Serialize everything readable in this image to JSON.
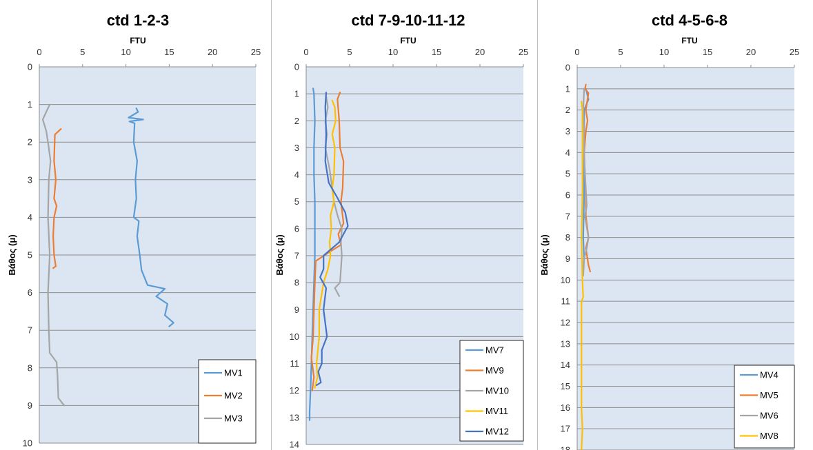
{
  "chart_data": [
    {
      "type": "line",
      "title": "ctd 1-2-3",
      "xlabel": "FTU",
      "ylabel": "Βάθος (μ)",
      "xlim": [
        0,
        25
      ],
      "ylim": [
        0,
        10
      ],
      "y_inverted": true,
      "x_axis_position": "top",
      "xticks": [
        "0",
        "5",
        "10",
        "15",
        "20",
        "25"
      ],
      "yticks": [
        "0",
        "1",
        "2",
        "3",
        "4",
        "5",
        "6",
        "7",
        "8",
        "9",
        "10"
      ],
      "grid": "horizontal",
      "legend": "bottom-right",
      "series": [
        {
          "name": "MV1",
          "color": "#5b9bd5",
          "points": [
            [
              11.2,
              1.1
            ],
            [
              11.4,
              1.2
            ],
            [
              10.3,
              1.35
            ],
            [
              12.0,
              1.4
            ],
            [
              10.4,
              1.45
            ],
            [
              11.0,
              1.5
            ],
            [
              10.9,
              2.0
            ],
            [
              11.3,
              2.5
            ],
            [
              11.1,
              3.0
            ],
            [
              11.2,
              3.5
            ],
            [
              10.9,
              4.0
            ],
            [
              11.5,
              4.1
            ],
            [
              11.3,
              4.5
            ],
            [
              11.6,
              5.0
            ],
            [
              11.8,
              5.4
            ],
            [
              12.5,
              5.8
            ],
            [
              14.5,
              5.9
            ],
            [
              13.5,
              6.1
            ],
            [
              14.8,
              6.3
            ],
            [
              14.5,
              6.6
            ],
            [
              15.5,
              6.8
            ],
            [
              15.0,
              6.9
            ]
          ]
        },
        {
          "name": "MV2",
          "color": "#ed7d31",
          "points": [
            [
              2.5,
              1.65
            ],
            [
              1.8,
              1.8
            ],
            [
              1.7,
              2.5
            ],
            [
              1.9,
              3.0
            ],
            [
              1.7,
              3.5
            ],
            [
              2.0,
              3.7
            ],
            [
              1.7,
              4.0
            ],
            [
              1.6,
              4.5
            ],
            [
              1.7,
              5.0
            ],
            [
              1.9,
              5.3
            ],
            [
              1.6,
              5.35
            ]
          ]
        },
        {
          "name": "MV3",
          "color": "#a5a5a5",
          "points": [
            [
              1.2,
              1.0
            ],
            [
              0.8,
              1.2
            ],
            [
              0.4,
              1.4
            ],
            [
              0.8,
              1.7
            ],
            [
              1.0,
              2.0
            ],
            [
              1.3,
              2.5
            ],
            [
              1.1,
              3.0
            ],
            [
              1.0,
              4.0
            ],
            [
              1.2,
              5.0
            ],
            [
              1.0,
              6.0
            ],
            [
              1.1,
              7.0
            ],
            [
              1.2,
              7.6
            ],
            [
              2.0,
              7.85
            ],
            [
              2.1,
              8.2
            ],
            [
              2.2,
              8.8
            ],
            [
              2.7,
              8.95
            ],
            [
              2.9,
              9.0
            ]
          ]
        }
      ]
    },
    {
      "type": "line",
      "title": "ctd 7-9-10-11-12",
      "xlabel": "FTU",
      "ylabel": "Βάθος (μ)",
      "xlim": [
        0,
        25
      ],
      "ylim": [
        0,
        14
      ],
      "y_inverted": true,
      "x_axis_position": "top",
      "xticks": [
        "0",
        "5",
        "10",
        "15",
        "20",
        "25"
      ],
      "yticks": [
        "0",
        "1",
        "2",
        "3",
        "4",
        "5",
        "6",
        "7",
        "8",
        "9",
        "10",
        "11",
        "12",
        "13",
        "14"
      ],
      "grid": "horizontal",
      "legend": "bottom-right",
      "series": [
        {
          "name": "MV7",
          "color": "#5b9bd5",
          "points": [
            [
              0.8,
              0.8
            ],
            [
              0.9,
              1.0
            ],
            [
              1.0,
              2.0
            ],
            [
              0.9,
              3.0
            ],
            [
              0.9,
              4.0
            ],
            [
              1.0,
              5.0
            ],
            [
              1.0,
              6.0
            ],
            [
              1.0,
              7.0
            ],
            [
              0.9,
              8.0
            ],
            [
              0.8,
              9.0
            ],
            [
              0.7,
              10.0
            ],
            [
              0.6,
              11.0
            ],
            [
              0.5,
              12.0
            ],
            [
              0.4,
              12.8
            ],
            [
              0.4,
              13.1
            ]
          ]
        },
        {
          "name": "MV9",
          "color": "#ed7d31",
          "points": [
            [
              3.9,
              0.95
            ],
            [
              3.6,
              1.2
            ],
            [
              3.8,
              2.0
            ],
            [
              3.9,
              3.0
            ],
            [
              4.3,
              3.5
            ],
            [
              4.2,
              4.5
            ],
            [
              4.0,
              5.0
            ],
            [
              4.3,
              5.8
            ],
            [
              3.7,
              6.2
            ],
            [
              4.0,
              6.6
            ],
            [
              2.5,
              6.9
            ],
            [
              1.1,
              7.2
            ],
            [
              1.0,
              8.0
            ],
            [
              0.9,
              9.0
            ],
            [
              0.8,
              10.0
            ],
            [
              0.6,
              10.8
            ],
            [
              0.9,
              11.5
            ],
            [
              0.7,
              12.0
            ]
          ]
        },
        {
          "name": "MV10",
          "color": "#a5a5a5",
          "points": [
            [
              2.3,
              1.1
            ],
            [
              2.5,
              1.5
            ],
            [
              2.2,
              2.0
            ],
            [
              2.4,
              2.5
            ],
            [
              2.2,
              3.0
            ],
            [
              2.7,
              3.8
            ],
            [
              3.0,
              4.5
            ],
            [
              3.2,
              5.0
            ],
            [
              3.6,
              5.5
            ],
            [
              4.1,
              6.0
            ],
            [
              4.0,
              6.5
            ],
            [
              4.1,
              7.0
            ],
            [
              4.0,
              7.5
            ],
            [
              3.9,
              8.0
            ],
            [
              3.3,
              8.2
            ],
            [
              3.8,
              8.5
            ]
          ]
        },
        {
          "name": "MV11",
          "color": "#ffc000",
          "points": [
            [
              3.0,
              1.25
            ],
            [
              3.3,
              1.5
            ],
            [
              3.4,
              2.0
            ],
            [
              3.0,
              2.5
            ],
            [
              3.3,
              3.0
            ],
            [
              3.2,
              4.0
            ],
            [
              3.0,
              4.5
            ],
            [
              3.2,
              5.0
            ],
            [
              2.8,
              5.5
            ],
            [
              2.9,
              6.0
            ],
            [
              2.7,
              6.5
            ],
            [
              2.8,
              7.0
            ],
            [
              2.5,
              7.5
            ],
            [
              2.0,
              8.0
            ],
            [
              1.5,
              9.0
            ],
            [
              1.5,
              10.0
            ],
            [
              1.2,
              11.0
            ],
            [
              1.3,
              11.5
            ],
            [
              1.0,
              11.9
            ]
          ]
        },
        {
          "name": "MV12",
          "color": "#4472c4",
          "points": [
            [
              2.3,
              0.95
            ],
            [
              2.2,
              1.5
            ],
            [
              2.3,
              2.5
            ],
            [
              2.2,
              3.5
            ],
            [
              2.6,
              4.3
            ],
            [
              3.5,
              4.8
            ],
            [
              4.5,
              5.4
            ],
            [
              4.8,
              5.9
            ],
            [
              3.8,
              6.5
            ],
            [
              2.0,
              7.0
            ],
            [
              2.0,
              7.5
            ],
            [
              1.6,
              7.8
            ],
            [
              2.3,
              8.2
            ],
            [
              2.0,
              9.0
            ],
            [
              2.4,
              10.0
            ],
            [
              1.8,
              10.5
            ],
            [
              1.8,
              11.0
            ],
            [
              1.4,
              11.3
            ],
            [
              1.7,
              11.7
            ],
            [
              1.2,
              11.8
            ]
          ]
        }
      ]
    },
    {
      "type": "line",
      "title": "ctd 4-5-6-8",
      "xlabel": "FTU",
      "ylabel": "Βάθος (μ)",
      "xlim": [
        0,
        25
      ],
      "ylim": [
        0,
        18
      ],
      "y_inverted": true,
      "x_axis_position": "top",
      "xticks": [
        "0",
        "5",
        "10",
        "15",
        "20",
        "25"
      ],
      "yticks": [
        "0",
        "1",
        "2",
        "3",
        "4",
        "5",
        "6",
        "7",
        "8",
        "9",
        "10",
        "11",
        "12",
        "13",
        "14",
        "15",
        "16",
        "17",
        "18"
      ],
      "grid": "horizontal",
      "legend": "bottom-right",
      "series": [
        {
          "name": "MV4",
          "color": "#5b9bd5",
          "points": [
            [
              1.0,
              1.0
            ],
            [
              1.3,
              1.5
            ],
            [
              0.8,
              2.0
            ],
            [
              0.8,
              4.0
            ],
            [
              0.8,
              6.0
            ],
            [
              0.7,
              8.0
            ],
            [
              0.8,
              9.0
            ],
            [
              0.6,
              9.8
            ]
          ]
        },
        {
          "name": "MV5",
          "color": "#ed7d31",
          "points": [
            [
              1.0,
              0.8
            ],
            [
              0.9,
              1.0
            ],
            [
              1.3,
              1.2
            ],
            [
              1.0,
              2.0
            ],
            [
              1.2,
              2.5
            ],
            [
              1.0,
              3.0
            ],
            [
              0.8,
              4.0
            ],
            [
              0.9,
              5.0
            ],
            [
              1.0,
              6.0
            ],
            [
              1.0,
              7.0
            ],
            [
              1.3,
              8.0
            ],
            [
              1.0,
              8.5
            ],
            [
              1.3,
              9.3
            ],
            [
              1.5,
              9.6
            ]
          ]
        },
        {
          "name": "MV6",
          "color": "#a5a5a5",
          "points": [
            [
              0.8,
              1.0
            ],
            [
              0.7,
              2.0
            ],
            [
              0.8,
              3.0
            ],
            [
              0.8,
              4.0
            ],
            [
              0.9,
              5.0
            ],
            [
              1.1,
              6.5
            ],
            [
              0.9,
              7.0
            ],
            [
              1.3,
              8.0
            ],
            [
              1.1,
              8.5
            ],
            [
              0.8,
              9.0
            ],
            [
              0.7,
              9.8
            ]
          ]
        },
        {
          "name": "MV8",
          "color": "#ffc000",
          "points": [
            [
              0.5,
              1.6
            ],
            [
              0.6,
              2.0
            ],
            [
              0.6,
              4.0
            ],
            [
              0.6,
              6.0
            ],
            [
              0.5,
              8.0
            ],
            [
              0.6,
              10.0
            ],
            [
              0.7,
              10.8
            ],
            [
              0.5,
              11.0
            ],
            [
              0.5,
              12.0
            ],
            [
              0.5,
              14.0
            ],
            [
              0.5,
              16.0
            ],
            [
              0.6,
              17.0
            ],
            [
              0.5,
              18.0
            ]
          ]
        }
      ]
    }
  ]
}
